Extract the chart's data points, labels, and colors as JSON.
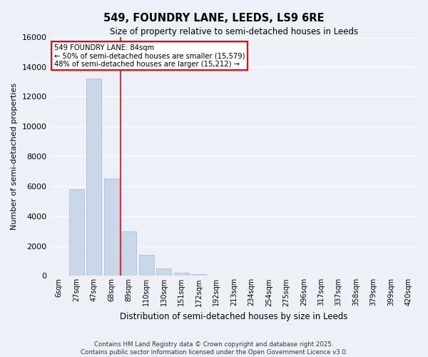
{
  "title": "549, FOUNDRY LANE, LEEDS, LS9 6RE",
  "subtitle": "Size of property relative to semi-detached houses in Leeds",
  "xlabel": "Distribution of semi-detached houses by size in Leeds",
  "ylabel": "Number of semi-detached properties",
  "categories": [
    "6sqm",
    "27sqm",
    "47sqm",
    "68sqm",
    "89sqm",
    "110sqm",
    "130sqm",
    "151sqm",
    "172sqm",
    "192sqm",
    "213sqm",
    "234sqm",
    "254sqm",
    "275sqm",
    "296sqm",
    "317sqm",
    "337sqm",
    "358sqm",
    "379sqm",
    "399sqm",
    "420sqm"
  ],
  "values": [
    0,
    5800,
    13200,
    6500,
    3000,
    1400,
    500,
    200,
    100,
    0,
    0,
    0,
    0,
    0,
    0,
    0,
    0,
    0,
    0,
    0,
    0
  ],
  "bar_color": "#c8d8ea",
  "bar_edge_color": "#a0b8cc",
  "red_line_bar_index": 3,
  "annotation_title": "549 FOUNDRY LANE: 84sqm",
  "annotation_line1": "← 50% of semi-detached houses are smaller (15,579)",
  "annotation_line2": "48% of semi-detached houses are larger (15,212) →",
  "ylim": [
    0,
    16000
  ],
  "yticks": [
    0,
    2000,
    4000,
    6000,
    8000,
    10000,
    12000,
    14000,
    16000
  ],
  "background_color": "#edf1f7",
  "grid_color": "#ffffff",
  "footer1": "Contains HM Land Registry data © Crown copyright and database right 2025.",
  "footer2": "Contains public sector information licensed under the Open Government Licence v3.0."
}
